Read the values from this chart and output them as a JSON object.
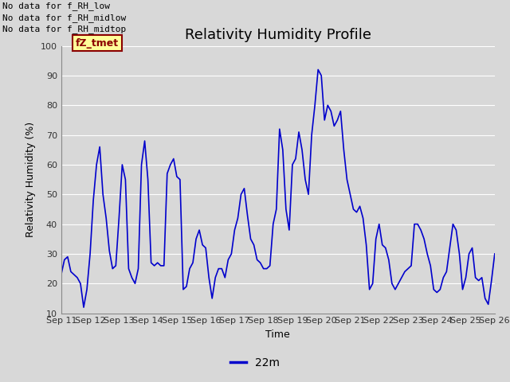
{
  "title": "Relativity Humidity Profile",
  "ylabel": "Relativity Humidity (%)",
  "xlabel": "Time",
  "ylim": [
    10,
    100
  ],
  "line_color": "#0000CC",
  "line_width": 1.2,
  "bg_color": "#D8D8D8",
  "plot_bg_color": "#D8D8D8",
  "legend_label": "22m",
  "no_data_texts": [
    "No data for f_RH_low",
    "No data for f_RH_midlow",
    "No data for f_RH_midtop"
  ],
  "tz_tmet_label": "fZ_tmet",
  "x_tick_labels": [
    "Sep 11",
    "Sep 12",
    "Sep 13",
    "Sep 14",
    "Sep 15",
    "Sep 16",
    "Sep 17",
    "Sep 18",
    "Sep 19",
    "Sep 20",
    "Sep 21",
    "Sep 22",
    "Sep 23",
    "Sep 24",
    "Sep 25",
    "Sep 26"
  ],
  "y_values": [
    23,
    28,
    29,
    24,
    23,
    22,
    20,
    12,
    18,
    30,
    48,
    60,
    66,
    50,
    42,
    31,
    25,
    26,
    42,
    60,
    55,
    25,
    22,
    20,
    25,
    60,
    68,
    55,
    27,
    26,
    27,
    26,
    26,
    57,
    60,
    62,
    56,
    55,
    18,
    19,
    25,
    27,
    35,
    38,
    33,
    32,
    22,
    15,
    22,
    25,
    25,
    22,
    28,
    30,
    38,
    42,
    50,
    52,
    43,
    35,
    33,
    28,
    27,
    25,
    25,
    26,
    40,
    45,
    72,
    65,
    45,
    38,
    60,
    62,
    71,
    65,
    55,
    50,
    70,
    80,
    92,
    90,
    75,
    80,
    78,
    73,
    75,
    78,
    65,
    55,
    50,
    45,
    44,
    46,
    42,
    33,
    18,
    20,
    35,
    40,
    33,
    32,
    28,
    20,
    18,
    20,
    22,
    24,
    25,
    26,
    40,
    40,
    38,
    35,
    30,
    26,
    18,
    17,
    18,
    22,
    24,
    32,
    40,
    38,
    30,
    18,
    22,
    30,
    32,
    22,
    21,
    22,
    15,
    13,
    21,
    30
  ],
  "title_fontsize": 13,
  "axis_label_fontsize": 9,
  "tick_fontsize": 8,
  "nodata_fontsize": 8,
  "legend_fontsize": 10
}
